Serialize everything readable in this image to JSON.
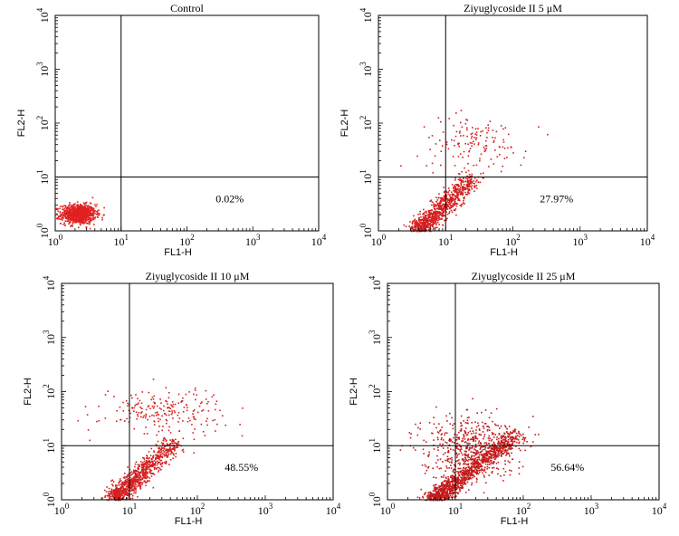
{
  "chart_data": [
    {
      "type": "scatter",
      "title": "Control",
      "xlabel": "FL1-H",
      "ylabel": "FL2-H",
      "xscale": "log",
      "yscale": "log",
      "xlim": [
        1,
        10000
      ],
      "ylim": [
        1,
        10000
      ],
      "x_ticks": [
        "10^0",
        "10^1",
        "10^2",
        "10^3",
        "10^4"
      ],
      "y_ticks": [
        "10^0",
        "10^1",
        "10^2",
        "10^3",
        "10^4"
      ],
      "gate": {
        "x": 10,
        "y": 10
      },
      "lower_right_percent": "0.02%",
      "point_color": "#e02020",
      "populations": [
        {
          "name": "main",
          "center": [
            2.2,
            2.1
          ],
          "spread_log": [
            0.13,
            0.09
          ],
          "count": 900
        }
      ]
    },
    {
      "type": "scatter",
      "title": "Ziyuglycoside II 5 μM",
      "xlabel": "FL1-H",
      "ylabel": "FL2-H",
      "xscale": "log",
      "yscale": "log",
      "xlim": [
        1,
        10000
      ],
      "ylim": [
        1,
        10000
      ],
      "x_ticks": [
        "10^0",
        "10^1",
        "10^2",
        "10^3",
        "10^4"
      ],
      "y_ticks": [
        "10^0",
        "10^1",
        "10^2",
        "10^3",
        "10^4"
      ],
      "gate": {
        "x": 10,
        "y": 10
      },
      "lower_right_percent": "27.97%",
      "point_color": "#d42020",
      "populations": [
        {
          "name": "diagonal",
          "start": [
            4,
            1.1
          ],
          "end": [
            25,
            10
          ],
          "count": 900
        },
        {
          "name": "upper",
          "center": [
            25,
            45
          ],
          "spread_log": [
            0.4,
            0.25
          ],
          "count": 140
        }
      ]
    },
    {
      "type": "scatter",
      "title": "Ziyuglycoside II 10 μM",
      "xlabel": "FL1-H",
      "ylabel": "FL2-H",
      "xscale": "log",
      "yscale": "log",
      "xlim": [
        1,
        10000
      ],
      "ylim": [
        1,
        10000
      ],
      "x_ticks": [
        "10^0",
        "10^1",
        "10^2",
        "10^3",
        "10^4"
      ],
      "y_ticks": [
        "10^0",
        "10^1",
        "10^2",
        "10^3",
        "10^4"
      ],
      "gate": {
        "x": 10,
        "y": 10
      },
      "lower_right_percent": "48.55%",
      "point_color": "#d42020",
      "populations": [
        {
          "name": "diagonal",
          "start": [
            6,
            1.1
          ],
          "end": [
            45,
            12
          ],
          "count": 900
        },
        {
          "name": "upper",
          "center": [
            30,
            45
          ],
          "spread_log": [
            0.45,
            0.22
          ],
          "count": 220
        }
      ]
    },
    {
      "type": "scatter",
      "title": "Ziyuglycoside II 25 μM",
      "xlabel": "FL1-H",
      "ylabel": "FL2-H",
      "xscale": "log",
      "yscale": "log",
      "xlim": [
        1,
        10000
      ],
      "ylim": [
        1,
        10000
      ],
      "x_ticks": [
        "10^0",
        "10^1",
        "10^2",
        "10^3",
        "10^4"
      ],
      "y_ticks": [
        "10^0",
        "10^1",
        "10^2",
        "10^3",
        "10^4"
      ],
      "gate": {
        "x": 10,
        "y": 10
      },
      "lower_right_percent": "56.64%",
      "point_color": "#c41c1c",
      "populations": [
        {
          "name": "diagonal",
          "start": [
            5,
            1.1
          ],
          "end": [
            80,
            18
          ],
          "count": 1200
        },
        {
          "name": "spread",
          "center": [
            15,
            10
          ],
          "spread_log": [
            0.35,
            0.3
          ],
          "count": 500
        }
      ]
    }
  ]
}
